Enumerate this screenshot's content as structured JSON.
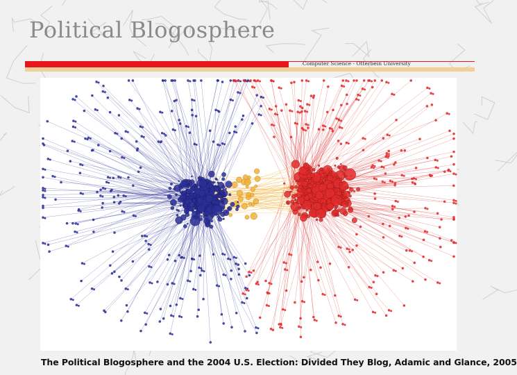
{
  "slide": {
    "title": "Political Blogosphere",
    "subtitle": "Computer Science - Otterbein University",
    "caption": "The Political Blogosphere and the 2004 U.S. Election: Divided They Blog, Adamic and Glance, 2005"
  },
  "colors": {
    "liberal": "#2b2f96",
    "conservative": "#e02b2b",
    "crossover": "#f2b33a",
    "accent_red": "#e8141b",
    "accent_tan": "#f0cf98",
    "title_gray": "#8a8a8a"
  },
  "figure": {
    "content": "network-graph",
    "clusters": [
      "liberal",
      "conservative"
    ]
  }
}
